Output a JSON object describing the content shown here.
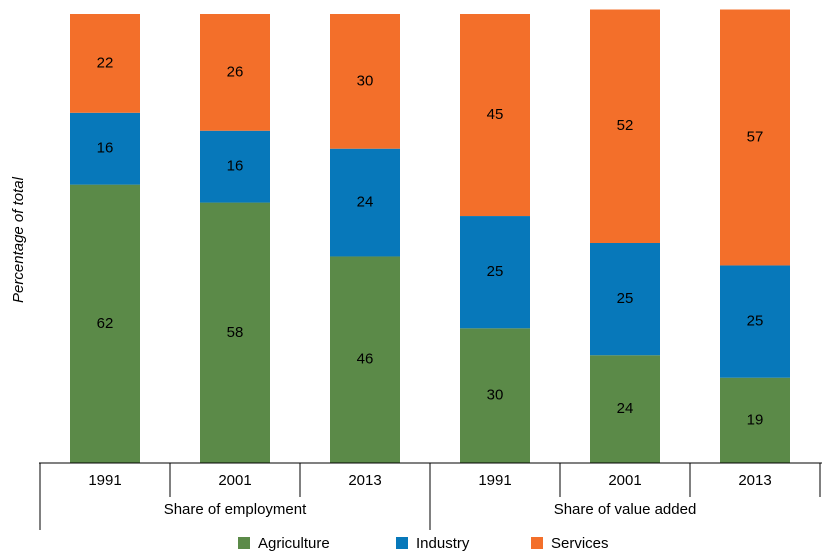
{
  "chart_data": {
    "type": "stacked_bar",
    "y_label": "Percentage of total",
    "categories": [
      "1991",
      "2001",
      "2013",
      "1991",
      "2001",
      "2013"
    ],
    "groups": [
      "Share of employment",
      "Share of value added"
    ],
    "series": [
      {
        "name": "Agriculture",
        "color": "#5b8a48",
        "values": [
          62,
          58,
          46,
          30,
          24,
          19
        ]
      },
      {
        "name": "Industry",
        "color": "#0778ba",
        "values": [
          16,
          16,
          24,
          25,
          25,
          25
        ]
      },
      {
        "name": "Services",
        "color": "#f36f2a",
        "values": [
          22,
          26,
          30,
          45,
          52,
          57
        ]
      }
    ],
    "ylim": [
      0,
      100
    ],
    "legend": "bottom"
  }
}
